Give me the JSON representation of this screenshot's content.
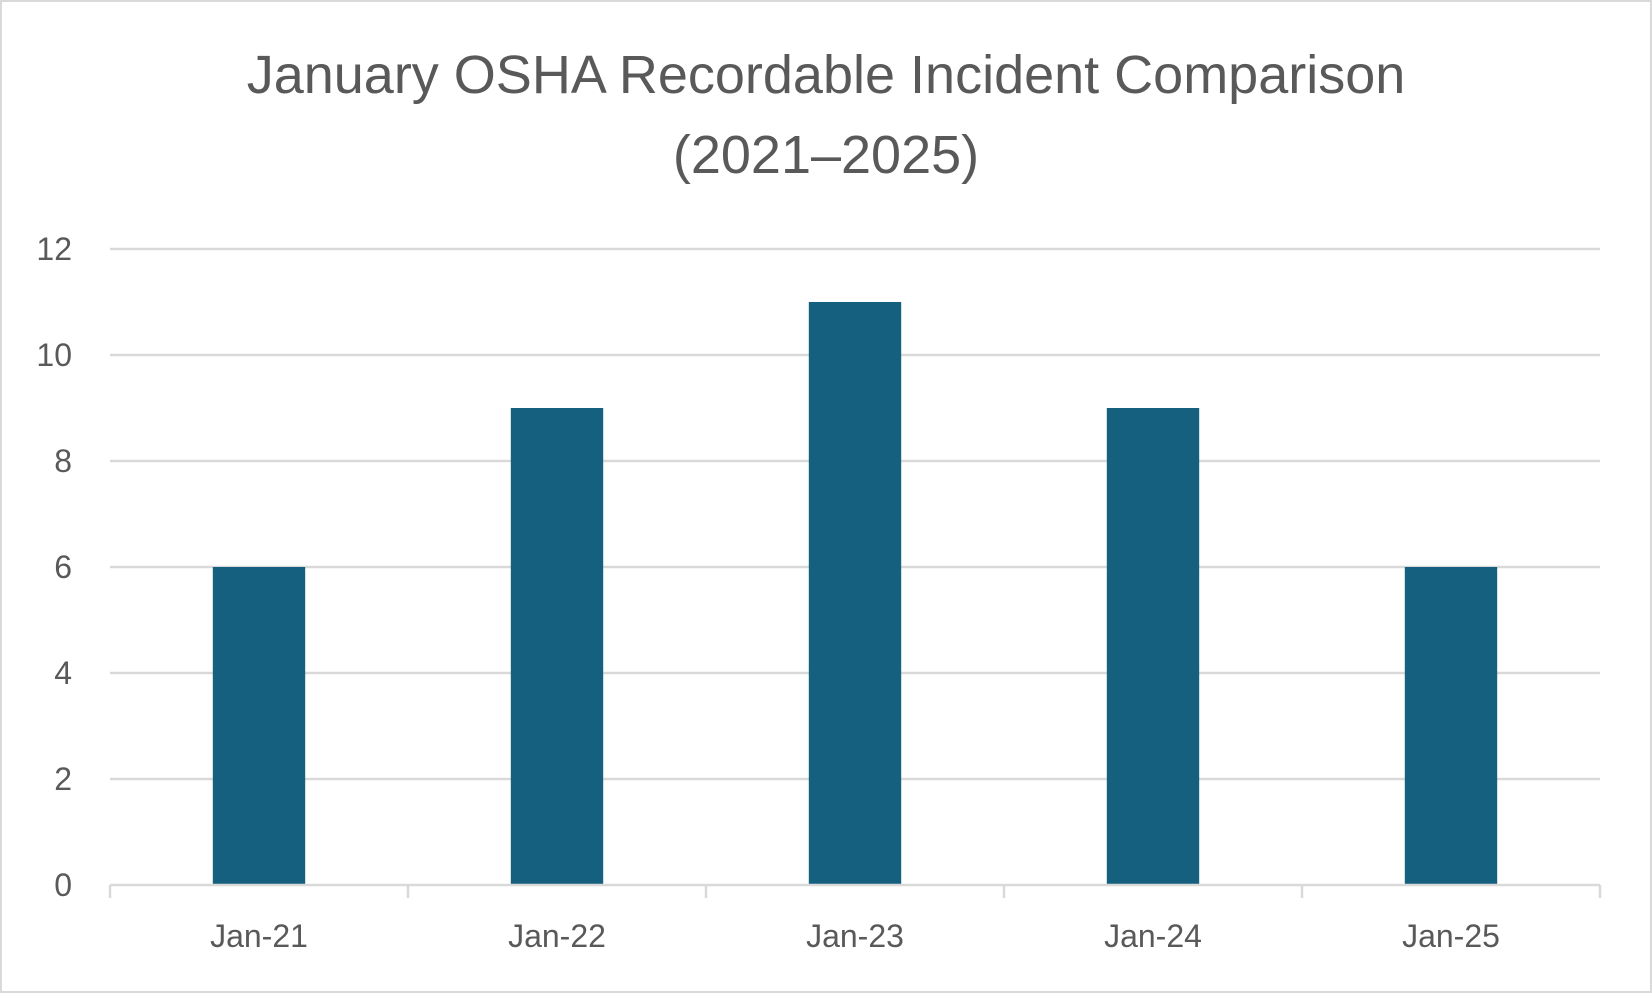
{
  "chart_data": {
    "type": "bar",
    "title_lines": [
      "January OSHA Recordable Incident Comparison",
      "(2021–2025)"
    ],
    "categories": [
      "Jan-21",
      "Jan-22",
      "Jan-23",
      "Jan-24",
      "Jan-25"
    ],
    "values": [
      6,
      9,
      11,
      9,
      6
    ],
    "ylim": [
      0,
      12
    ],
    "yticks": [
      "0",
      "2",
      "4",
      "6",
      "8",
      "10",
      "12"
    ],
    "xlabel": "",
    "ylabel": "",
    "grid": true,
    "legend": "none",
    "colors": {
      "bar": "#16607f",
      "grid": "#d9d9d9",
      "axis": "#d9d9d9",
      "text": "#595959"
    }
  }
}
